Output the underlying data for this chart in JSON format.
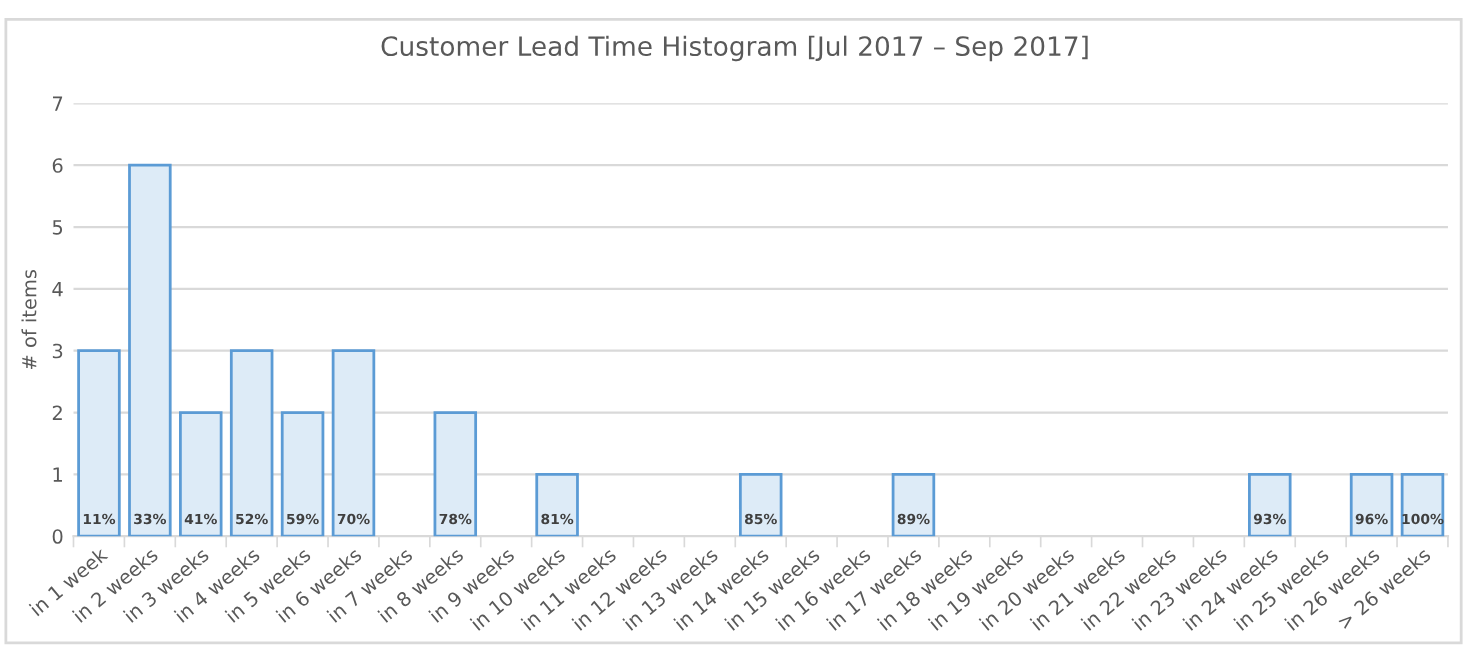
{
  "chart_data": {
    "type": "bar",
    "title": "Customer Lead Time Histogram [Jul 2017 – Sep 2017]",
    "ylabel": "# of items",
    "categories": [
      "in 1 week",
      "in 2 weeks",
      "in 3 weeks",
      "in 4 weeks",
      "in 5 weeks",
      "in 6 weeks",
      "in 7 weeks",
      "in 8 weeks",
      "in 9 weeks",
      "in 10 weeks",
      "in 11 weeks",
      "in 12 weeks",
      "in 13 weeks",
      "in 14 weeks",
      "in 15 weeks",
      "in 16 weeks",
      "in 17 weeks",
      "in 18 weeks",
      "in 19 weeks",
      "in 20 weeks",
      "in 21 weeks",
      "in 22 weeks",
      "in 23 weeks",
      "in 24 weeks",
      "in 25 weeks",
      "in 26 weeks",
      "> 26 weeks"
    ],
    "values": [
      3,
      6,
      2,
      3,
      2,
      3,
      0,
      2,
      0,
      1,
      0,
      0,
      0,
      1,
      0,
      0,
      1,
      0,
      0,
      0,
      0,
      0,
      0,
      1,
      0,
      1,
      1
    ],
    "annotations": [
      {
        "text": "11%",
        "x": "in 1 week",
        "y": 0
      },
      {
        "text": "33%",
        "x": "in 2 weeks",
        "y": 0
      },
      {
        "text": "41%",
        "x": "in 3 weeks",
        "y": 0
      },
      {
        "text": "52%",
        "x": "in 4 weeks",
        "y": 0
      },
      {
        "text": "59%",
        "x": "in 5 weeks",
        "y": 0
      },
      {
        "text": "70%",
        "x": "in 6 weeks",
        "y": 0
      },
      {
        "text": "78%",
        "x": "in 8 weeks",
        "y": 0
      },
      {
        "text": "81%",
        "x": "in 10 weeks",
        "y": 0
      },
      {
        "text": "85%",
        "x": "in 14 weeks",
        "y": 0
      },
      {
        "text": "89%",
        "x": "in 17 weeks",
        "y": 0
      },
      {
        "text": "93%",
        "x": "in 24 weeks",
        "y": 0
      },
      {
        "text": "96%",
        "x": "in 26 weeks",
        "y": 0
      },
      {
        "text": "100%",
        "x": "> 26 weeks",
        "y": 0
      }
    ],
    "color": "#ddebf7",
    "ylim": [
      0,
      7
    ],
    "yticks": [
      0,
      1,
      2,
      3,
      4,
      5,
      6,
      7
    ],
    "grid": "y"
  }
}
